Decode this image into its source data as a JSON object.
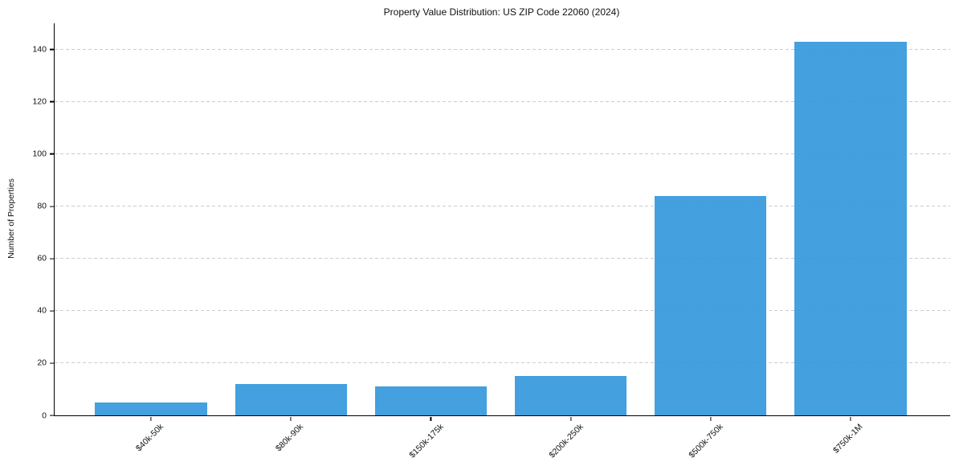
{
  "chart_data": {
    "type": "bar",
    "title": "Property Value Distribution: US ZIP Code 22060 (2024)",
    "xlabel": "",
    "ylabel": "Number of Properties",
    "categories": [
      "$40k-50k",
      "$80k-90k",
      "$150k-175k",
      "$200k-250k",
      "$500k-750k",
      "$750k-1M"
    ],
    "values": [
      5,
      12,
      11,
      15,
      84,
      143
    ],
    "ylim": [
      0,
      150
    ],
    "yticks": [
      0,
      20,
      40,
      60,
      80,
      100,
      120,
      140
    ],
    "grid": "horizontal-dashed",
    "legend": "none",
    "colors": {
      "bar": "#3498db",
      "gridline": "#cccccc",
      "spine": "#000000",
      "text": "#111111",
      "background": "#ffffff"
    }
  }
}
